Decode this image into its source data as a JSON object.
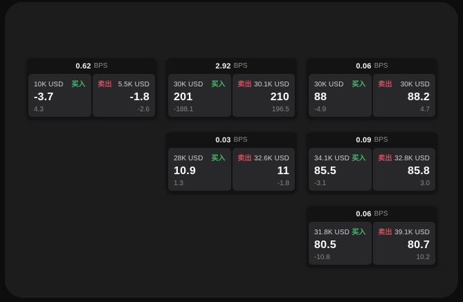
{
  "labels": {
    "bps": "BPS",
    "buy": "买入",
    "sell": "卖出"
  },
  "colors": {
    "page_background": "#0d0d0e",
    "panel_background": "#1c1c1d",
    "card_background": "#131314",
    "tile_background": "#28282a",
    "buy_accent": "#44bd6e",
    "sell_accent": "#ca4f5f"
  },
  "cards": [
    {
      "bps": "0.62",
      "buy": {
        "amount": "10K USD",
        "price": "-3.7",
        "delta": "4.3"
      },
      "sell": {
        "amount": "5.5K USD",
        "price": "-1.8",
        "delta": "-2.6"
      }
    },
    {
      "bps": "2.92",
      "buy": {
        "amount": "30K USD",
        "price": "201",
        "delta": "-188.1"
      },
      "sell": {
        "amount": "30.1K USD",
        "price": "210",
        "delta": "196.5"
      }
    },
    {
      "bps": "0.06",
      "buy": {
        "amount": "30K USD",
        "price": "88",
        "delta": "-4.9"
      },
      "sell": {
        "amount": "30K USD",
        "price": "88.2",
        "delta": "4.7"
      }
    },
    {
      "bps": "0.03",
      "buy": {
        "amount": "28K USD",
        "price": "10.9",
        "delta": "1.3"
      },
      "sell": {
        "amount": "32.6K USD",
        "price": "11",
        "delta": "-1.8"
      }
    },
    {
      "bps": "0.09",
      "buy": {
        "amount": "34.1K USD",
        "price": "85.5",
        "delta": "-3.1"
      },
      "sell": {
        "amount": "32.8K USD",
        "price": "85.8",
        "delta": "3.0"
      }
    },
    {
      "bps": "0.06",
      "buy": {
        "amount": "31.8K USD",
        "price": "80.5",
        "delta": "-10.8"
      },
      "sell": {
        "amount": "39.1K USD",
        "price": "80.7",
        "delta": "10.2"
      }
    }
  ]
}
